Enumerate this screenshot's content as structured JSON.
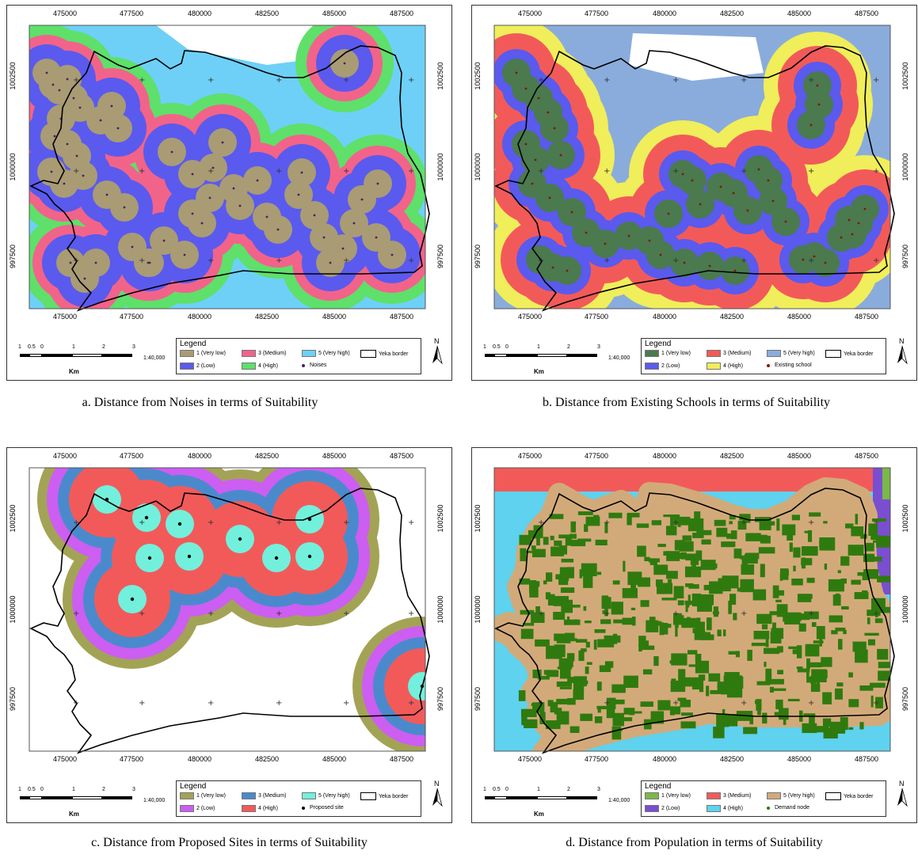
{
  "x_ticks": [
    "475000",
    "477500",
    "480000",
    "482500",
    "485000",
    "487500"
  ],
  "y_ticks": [
    "1002500",
    "1000000",
    "997500"
  ],
  "scale": {
    "labels": [
      "1",
      "0.5",
      "0",
      "1",
      "2",
      "3"
    ],
    "unit": "Km",
    "ratio": "1:40,000"
  },
  "north_label": "N",
  "legend_title": "Legend",
  "border_label": "Yeka border",
  "panels": [
    {
      "caption": "a. Distance from Noises in terms of Suitability",
      "legend": [
        {
          "label": "1 (Very low)",
          "color": "#a99b74"
        },
        {
          "label": "2 (Low)",
          "color": "#5a5aee"
        },
        {
          "label": "3 (Medium)",
          "color": "#f2638a"
        },
        {
          "label": "4 (High)",
          "color": "#5ee06a"
        },
        {
          "label": "5 (Very high)",
          "color": "#6ed0f7"
        }
      ],
      "point_label": "Noises",
      "point_color": "#4a2060"
    },
    {
      "caption": "b. Distance from Existing Schools in terms of Suitability",
      "legend": [
        {
          "label": "1 (Very low)",
          "color": "#4a7a4e"
        },
        {
          "label": "2 (Low)",
          "color": "#5a5aee"
        },
        {
          "label": "3 (Medium)",
          "color": "#f25a5a"
        },
        {
          "label": "4 (High)",
          "color": "#f0ee5a"
        },
        {
          "label": "5 (Very high)",
          "color": "#8aacdc"
        }
      ],
      "point_label": "Existing school",
      "point_color": "#8a1010"
    },
    {
      "caption": "c. Distance from Proposed Sites in terms of Suitability",
      "legend": [
        {
          "label": "1 (Very low)",
          "color": "#a3a356"
        },
        {
          "label": "2 (Low)",
          "color": "#cc5ef2"
        },
        {
          "label": "3 (Medium)",
          "color": "#4a8acc"
        },
        {
          "label": "4 (High)",
          "color": "#f25a5a"
        },
        {
          "label": "5 (Very high)",
          "color": "#72f0dc"
        }
      ],
      "point_label": "Proposed site",
      "point_color": "#000000"
    },
    {
      "caption": "d. Distance from Population in terms of Suitability",
      "legend": [
        {
          "label": "1 (Very low)",
          "color": "#7ab84a"
        },
        {
          "label": "2 (Low)",
          "color": "#7a4ed0"
        },
        {
          "label": "3 (Medium)",
          "color": "#f25a5a"
        },
        {
          "label": "4 (High)",
          "color": "#5ed2ee"
        },
        {
          "label": "5 (Very high)",
          "color": "#d2aa7a"
        }
      ],
      "point_label": "Demand node",
      "point_color": "#2a7a10"
    }
  ]
}
